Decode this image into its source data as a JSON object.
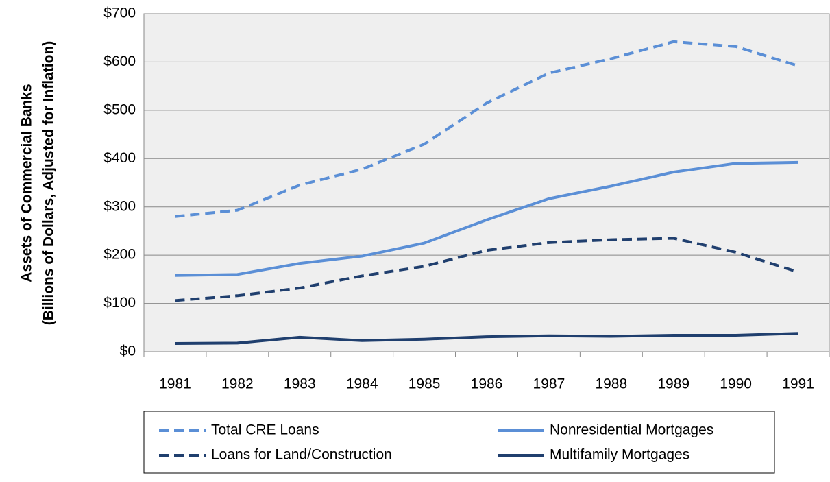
{
  "chart_data": {
    "type": "line",
    "ylabel": [
      "Assets of Commercial Banks",
      "(Billions of Dollars, Adjusted for Inflation)"
    ],
    "categories": [
      "1981",
      "1982",
      "1983",
      "1984",
      "1985",
      "1986",
      "1987",
      "1988",
      "1989",
      "1990",
      "1991"
    ],
    "series": [
      {
        "name": "Total CRE Loans",
        "color": "#5b8fd6",
        "dashed": true,
        "values": [
          280,
          293,
          345,
          378,
          430,
          515,
          577,
          607,
          642,
          632,
          592
        ]
      },
      {
        "name": "Nonresidential Mortgages",
        "color": "#5b8fd6",
        "dashed": false,
        "values": [
          158,
          160,
          183,
          198,
          225,
          273,
          317,
          343,
          372,
          390,
          392
        ]
      },
      {
        "name": "Loans for Land/Construction",
        "color": "#203f6e",
        "dashed": true,
        "values": [
          106,
          116,
          132,
          157,
          177,
          210,
          226,
          232,
          235,
          206,
          165
        ]
      },
      {
        "name": "Multifamily Mortgages",
        "color": "#203f6e",
        "dashed": false,
        "values": [
          17,
          18,
          30,
          23,
          26,
          31,
          33,
          32,
          34,
          34,
          38
        ]
      }
    ],
    "ylim": [
      0,
      700
    ],
    "yticks": [
      {
        "value": 0,
        "label": "$0"
      },
      {
        "value": 100,
        "label": "$100"
      },
      {
        "value": 200,
        "label": "$200"
      },
      {
        "value": 300,
        "label": "$300"
      },
      {
        "value": 400,
        "label": "$400"
      },
      {
        "value": 500,
        "label": "$500"
      },
      {
        "value": 600,
        "label": "$600"
      },
      {
        "value": 700,
        "label": "$700"
      }
    ],
    "grid": true,
    "legend": "bottom"
  }
}
